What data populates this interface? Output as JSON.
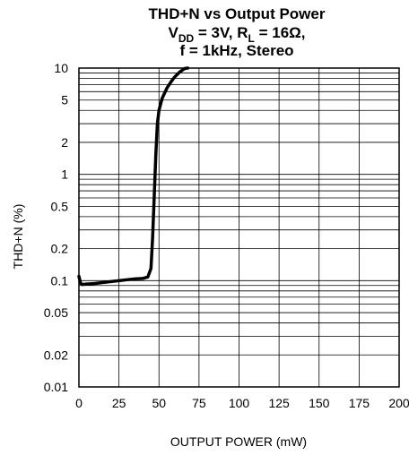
{
  "chart_data": {
    "type": "line",
    "title": {
      "line1": "THD+N vs Output Power",
      "line2_parts": [
        "V",
        "DD",
        " = 3V, R",
        "L",
        " = 16Ω,"
      ],
      "line3": "f = 1kHz, Stereo"
    },
    "xlabel": "OUTPUT POWER (mW)",
    "ylabel": "THD+N (%)",
    "x_scale": "linear",
    "y_scale": "log",
    "xlim": [
      0,
      200
    ],
    "ylim": [
      0.01,
      10
    ],
    "x_ticks": [
      0,
      25,
      50,
      75,
      100,
      125,
      150,
      175,
      200
    ],
    "x_tick_labels": [
      "0",
      "25",
      "50",
      "75",
      "100",
      "125",
      "150",
      "175",
      "200"
    ],
    "y_ticks": [
      10,
      5,
      2,
      1,
      0.5,
      0.2,
      0.1,
      0.05,
      0.02,
      0.01
    ],
    "y_tick_labels": [
      "10",
      "5",
      "2",
      "1",
      "0.5",
      "0.2",
      "0.1",
      "0.05",
      "0.02",
      "0.01"
    ],
    "grid": true,
    "series": [
      {
        "x": [
          0,
          1,
          2,
          5,
          10,
          15,
          20,
          25,
          30,
          35,
          40,
          43,
          45,
          46,
          47,
          48,
          49,
          50,
          52,
          55,
          58,
          60,
          63,
          66,
          68
        ],
        "y": [
          0.11,
          0.095,
          0.092,
          0.093,
          0.094,
          0.096,
          0.098,
          0.1,
          0.102,
          0.104,
          0.105,
          0.108,
          0.13,
          0.25,
          0.6,
          1.5,
          3.0,
          4.0,
          5.2,
          6.5,
          7.6,
          8.3,
          9.2,
          9.9,
          10.0
        ]
      }
    ]
  }
}
